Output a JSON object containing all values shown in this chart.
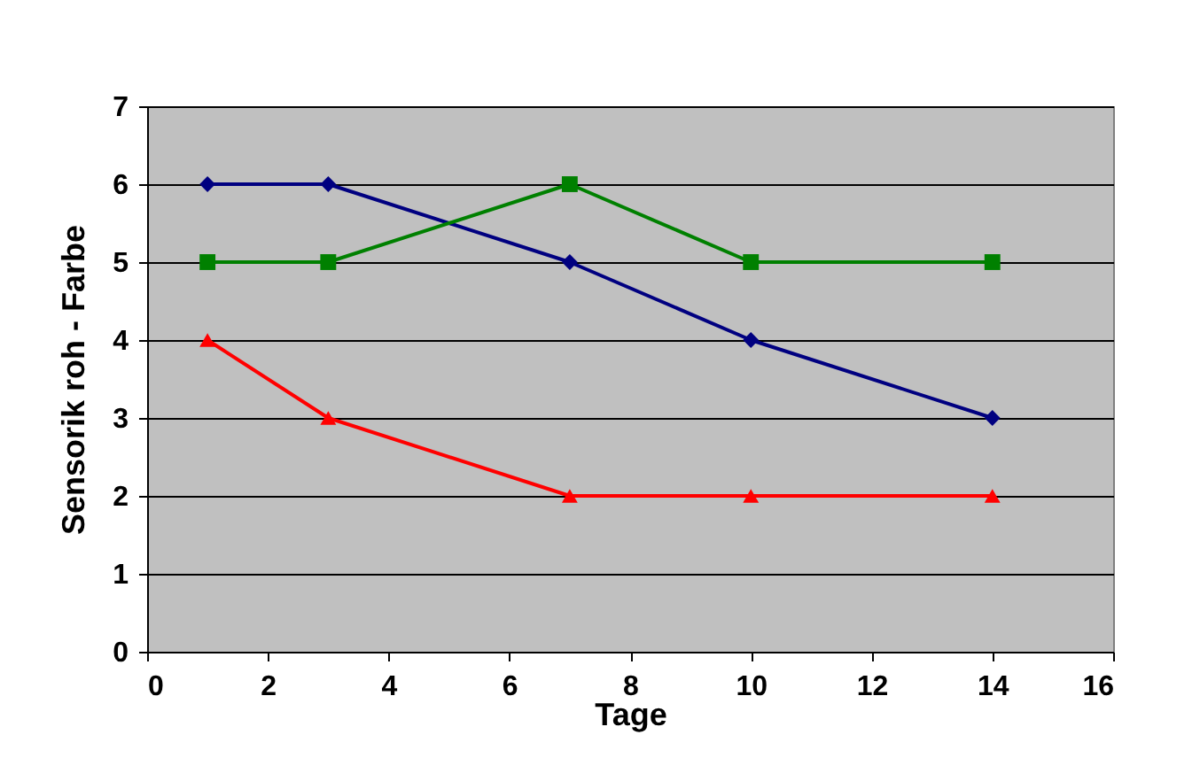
{
  "chart_data": {
    "type": "line",
    "xlabel": "Tage",
    "ylabel": "Sensorik roh - Farbe",
    "x": [
      1,
      3,
      7,
      10,
      14
    ],
    "series": [
      {
        "color": "#000080",
        "marker": "diamond",
        "values": [
          6,
          6,
          5,
          4,
          3
        ]
      },
      {
        "color": "#008000",
        "marker": "square",
        "values": [
          5,
          5,
          6,
          5,
          5
        ]
      },
      {
        "color": "#ff0000",
        "marker": "triangle",
        "values": [
          4,
          3,
          2,
          2,
          2
        ]
      }
    ],
    "xlim": [
      0,
      16
    ],
    "xticks": [
      0,
      2,
      4,
      6,
      8,
      10,
      12,
      14,
      16
    ],
    "ylim": [
      0,
      7
    ],
    "yticks": [
      0,
      1,
      2,
      3,
      4,
      5,
      6,
      7
    ],
    "grid": "y",
    "line_style": "solid"
  }
}
